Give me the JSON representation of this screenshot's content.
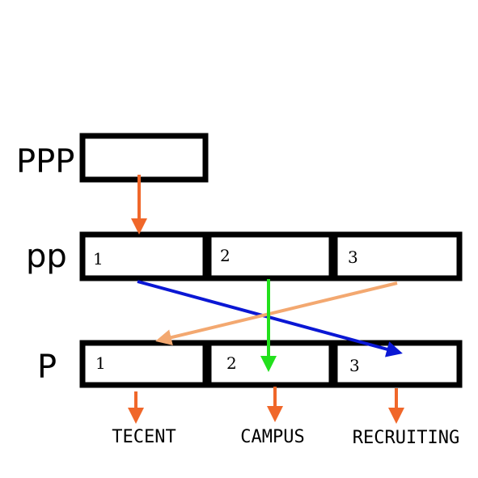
{
  "rows": {
    "ppp": {
      "label": "PPP"
    },
    "pp": {
      "label": "pp",
      "cells": [
        "1",
        "2",
        "3"
      ]
    },
    "p": {
      "label": "P",
      "cells": [
        "1",
        "2",
        "3"
      ]
    }
  },
  "captions": [
    "TECENT",
    "CAMPUS",
    "RECRUITING"
  ],
  "colors": {
    "box_border": "#000000",
    "down_arrow": "#f0672a",
    "cross_blue": "#0a17d4",
    "cross_green": "#22e01c",
    "cross_peach": "#f3a870"
  }
}
